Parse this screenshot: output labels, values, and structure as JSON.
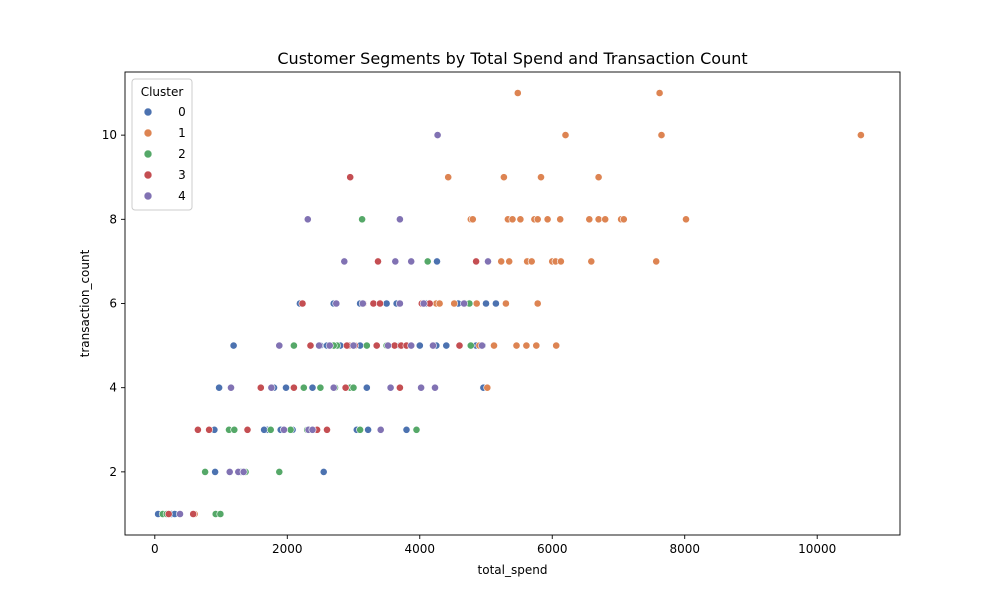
{
  "chart_data": {
    "type": "scatter",
    "title": "Customer Segments by Total Spend and Transaction Count",
    "xlabel": "total_spend",
    "ylabel": "transaction_count",
    "xlim": [
      -450,
      11250
    ],
    "ylim": [
      0.5,
      11.5
    ],
    "xticks": [
      0,
      2000,
      4000,
      6000,
      8000,
      10000
    ],
    "yticks": [
      2,
      4,
      6,
      8,
      10
    ],
    "grid": false,
    "legend": {
      "title": "Cluster",
      "placement": "top-left"
    },
    "colors": {
      "0": "#4c72b0",
      "1": "#dd8452",
      "2": "#55a868",
      "3": "#c44e52",
      "4": "#8172b3"
    },
    "series": [
      {
        "name": "0",
        "points": [
          [
            50,
            1
          ],
          [
            250,
            1
          ],
          [
            300,
            1
          ],
          [
            910,
            2
          ],
          [
            970,
            4
          ],
          [
            1190,
            5
          ],
          [
            1300,
            2
          ],
          [
            2190,
            6
          ],
          [
            1980,
            4
          ],
          [
            1700,
            3
          ],
          [
            2550,
            2
          ],
          [
            2380,
            4
          ],
          [
            2080,
            3
          ],
          [
            2500,
            5
          ],
          [
            2600,
            5
          ],
          [
            2800,
            5
          ],
          [
            3050,
            3
          ],
          [
            3100,
            6
          ],
          [
            3220,
            3
          ],
          [
            3100,
            5
          ],
          [
            3200,
            4
          ],
          [
            3500,
            6
          ],
          [
            3650,
            6
          ],
          [
            3800,
            3
          ],
          [
            4000,
            5
          ],
          [
            4250,
            5
          ],
          [
            4260,
            7
          ],
          [
            4300,
            6
          ],
          [
            4400,
            5
          ],
          [
            4580,
            6
          ],
          [
            4850,
            5
          ],
          [
            4950,
            5
          ],
          [
            4960,
            4
          ],
          [
            5000,
            6
          ],
          [
            5150,
            6
          ],
          [
            3350,
            5
          ],
          [
            1800,
            4
          ],
          [
            1900,
            3
          ],
          [
            900,
            3
          ],
          [
            2700,
            6
          ],
          [
            3700,
            5
          ],
          [
            4100,
            6
          ],
          [
            2250,
            4
          ],
          [
            1650,
            3
          ]
        ]
      },
      {
        "name": "1",
        "points": [
          [
            5480,
            11
          ],
          [
            7620,
            11
          ],
          [
            6200,
            10
          ],
          [
            7650,
            10
          ],
          [
            10660,
            10
          ],
          [
            4430,
            9
          ],
          [
            5270,
            9
          ],
          [
            5830,
            9
          ],
          [
            6700,
            9
          ],
          [
            4770,
            8
          ],
          [
            4800,
            8
          ],
          [
            5330,
            8
          ],
          [
            5400,
            8
          ],
          [
            5520,
            8
          ],
          [
            5730,
            8
          ],
          [
            5780,
            8
          ],
          [
            5930,
            8
          ],
          [
            6120,
            8
          ],
          [
            6560,
            8
          ],
          [
            6700,
            8
          ],
          [
            6800,
            8
          ],
          [
            7040,
            8
          ],
          [
            7080,
            8
          ],
          [
            8020,
            8
          ],
          [
            5230,
            7
          ],
          [
            5350,
            7
          ],
          [
            5620,
            7
          ],
          [
            5690,
            7
          ],
          [
            6000,
            7
          ],
          [
            6050,
            7
          ],
          [
            6130,
            7
          ],
          [
            6590,
            7
          ],
          [
            7570,
            7
          ],
          [
            4250,
            6
          ],
          [
            4520,
            6
          ],
          [
            4680,
            6
          ],
          [
            4860,
            6
          ],
          [
            5300,
            6
          ],
          [
            5780,
            6
          ],
          [
            4900,
            5
          ],
          [
            5120,
            5
          ],
          [
            5460,
            5
          ],
          [
            5610,
            5
          ],
          [
            5760,
            5
          ],
          [
            6060,
            5
          ],
          [
            5020,
            4
          ],
          [
            600,
            1
          ],
          [
            4300,
            6
          ],
          [
            4700,
            6
          ]
        ]
      },
      {
        "name": "2",
        "points": [
          [
            120,
            1
          ],
          [
            180,
            1
          ],
          [
            920,
            1
          ],
          [
            990,
            1
          ],
          [
            760,
            2
          ],
          [
            1370,
            2
          ],
          [
            1880,
            2
          ],
          [
            1120,
            3
          ],
          [
            1750,
            3
          ],
          [
            2050,
            3
          ],
          [
            3100,
            3
          ],
          [
            3950,
            3
          ],
          [
            2250,
            4
          ],
          [
            2500,
            4
          ],
          [
            2720,
            4
          ],
          [
            2950,
            4
          ],
          [
            2100,
            5
          ],
          [
            2750,
            5
          ],
          [
            3200,
            5
          ],
          [
            4770,
            5
          ],
          [
            4680,
            6
          ],
          [
            4120,
            7
          ],
          [
            3130,
            8
          ],
          [
            2700,
            5
          ],
          [
            3000,
            4
          ],
          [
            2300,
            3
          ],
          [
            1200,
            3
          ],
          [
            4750,
            6
          ],
          [
            3500,
            5
          ]
        ]
      },
      {
        "name": "3",
        "points": [
          [
            210,
            1
          ],
          [
            580,
            1
          ],
          [
            650,
            3
          ],
          [
            820,
            3
          ],
          [
            1400,
            3
          ],
          [
            2450,
            3
          ],
          [
            2600,
            3
          ],
          [
            1600,
            4
          ],
          [
            2100,
            4
          ],
          [
            2880,
            4
          ],
          [
            3700,
            4
          ],
          [
            2350,
            5
          ],
          [
            2930,
            5
          ],
          [
            3020,
            5
          ],
          [
            3350,
            5
          ],
          [
            3620,
            5
          ],
          [
            3720,
            5
          ],
          [
            4600,
            5
          ],
          [
            3150,
            6
          ],
          [
            3300,
            6
          ],
          [
            3400,
            6
          ],
          [
            4030,
            6
          ],
          [
            2950,
            9
          ],
          [
            3370,
            7
          ],
          [
            4850,
            7
          ],
          [
            2230,
            6
          ],
          [
            2900,
            5
          ],
          [
            3800,
            5
          ],
          [
            4150,
            6
          ]
        ]
      },
      {
        "name": "4",
        "points": [
          [
            380,
            1
          ],
          [
            1130,
            2
          ],
          [
            1260,
            2
          ],
          [
            1340,
            2
          ],
          [
            1150,
            4
          ],
          [
            1760,
            4
          ],
          [
            2320,
            3
          ],
          [
            2380,
            3
          ],
          [
            3410,
            3
          ],
          [
            3560,
            4
          ],
          [
            4020,
            4
          ],
          [
            4230,
            4
          ],
          [
            1880,
            5
          ],
          [
            2480,
            5
          ],
          [
            2640,
            5
          ],
          [
            3520,
            5
          ],
          [
            3870,
            5
          ],
          [
            4940,
            5
          ],
          [
            2740,
            6
          ],
          [
            3140,
            6
          ],
          [
            3700,
            6
          ],
          [
            4060,
            6
          ],
          [
            4670,
            6
          ],
          [
            2860,
            7
          ],
          [
            3630,
            7
          ],
          [
            3870,
            7
          ],
          [
            5030,
            7
          ],
          [
            2310,
            8
          ],
          [
            3700,
            8
          ],
          [
            4270,
            10
          ],
          [
            4200,
            5
          ],
          [
            1950,
            3
          ],
          [
            2700,
            4
          ],
          [
            3000,
            5
          ]
        ]
      }
    ]
  }
}
